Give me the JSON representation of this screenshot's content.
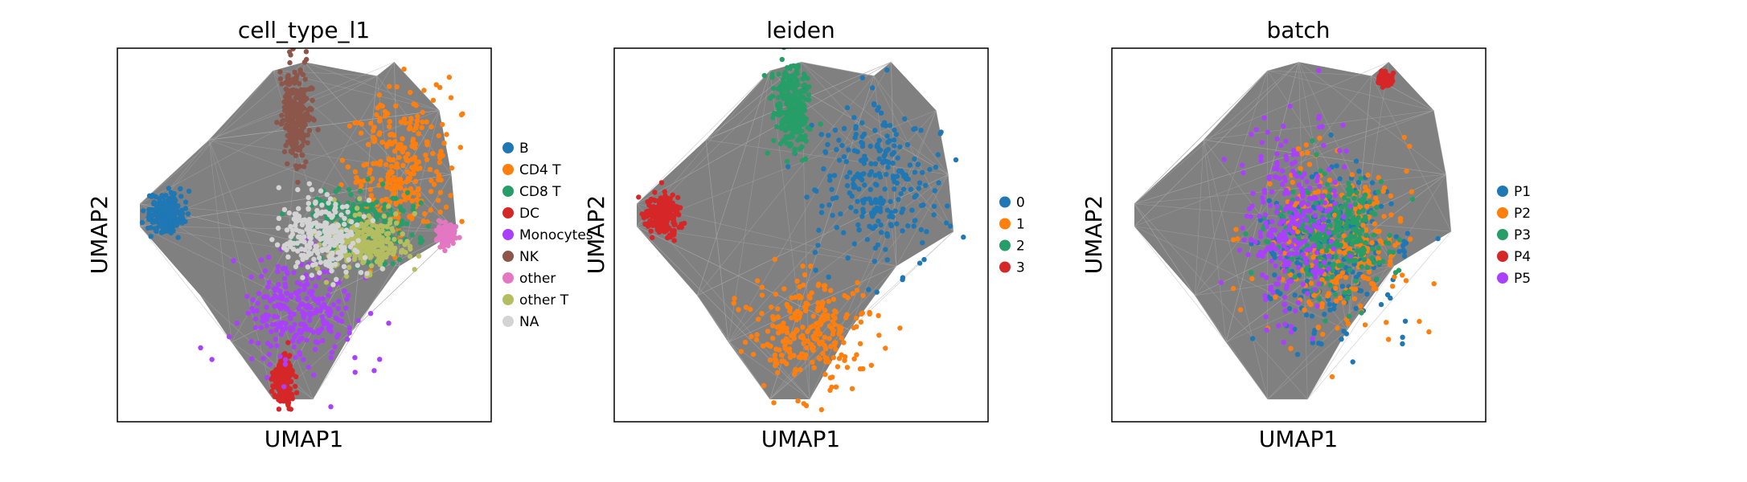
{
  "chart_data": [
    {
      "type": "scatter",
      "title": "cell_type_l1",
      "xlabel": "UMAP1",
      "ylabel": "UMAP2",
      "grid": false,
      "ticks": false,
      "legend_position": "right",
      "categories": [
        "B",
        "CD4 T",
        "CD8 T",
        "DC",
        "Monocytes",
        "NK",
        "other",
        "other T",
        "NA"
      ],
      "colors": [
        "#1f77b4",
        "#ff7f0e",
        "#279e68",
        "#d62728",
        "#aa40fc",
        "#8c564b",
        "#e377c2",
        "#b5bd61",
        "#d3d3d3"
      ],
      "clusters": [
        {
          "category": "B",
          "center": [
            -0.8,
            0.12
          ],
          "spread": [
            0.09,
            0.1
          ]
        },
        {
          "category": "CD4 T",
          "center": [
            0.55,
            0.42
          ],
          "spread": [
            0.26,
            0.38
          ]
        },
        {
          "category": "CD8 T",
          "center": [
            0.3,
            0.05
          ],
          "spread": [
            0.28,
            0.18
          ]
        },
        {
          "category": "DC",
          "center": [
            -0.12,
            -0.85
          ],
          "spread": [
            0.05,
            0.12
          ]
        },
        {
          "category": "Monocytes",
          "center": [
            -0.02,
            -0.45
          ],
          "spread": [
            0.28,
            0.3
          ]
        },
        {
          "category": "NK",
          "center": [
            -0.05,
            0.7
          ],
          "spread": [
            0.08,
            0.25
          ]
        },
        {
          "category": "other",
          "center": [
            0.82,
            0.0
          ],
          "spread": [
            0.04,
            0.05
          ]
        },
        {
          "category": "other T",
          "center": [
            0.35,
            -0.05
          ],
          "spread": [
            0.22,
            0.14
          ]
        },
        {
          "category": "NA",
          "center": [
            0.1,
            0.0
          ],
          "spread": [
            0.2,
            0.2
          ]
        }
      ]
    },
    {
      "type": "scatter",
      "title": "leiden",
      "xlabel": "UMAP1",
      "ylabel": "UMAP2",
      "grid": false,
      "ticks": false,
      "legend_position": "right",
      "categories": [
        "0",
        "1",
        "2",
        "3"
      ],
      "colors": [
        "#1f77b4",
        "#ff7f0e",
        "#279e68",
        "#d62728"
      ],
      "clusters": [
        {
          "category": "0",
          "center": [
            0.45,
            0.3
          ],
          "spread": [
            0.32,
            0.42
          ]
        },
        {
          "category": "1",
          "center": [
            0.05,
            -0.55
          ],
          "spread": [
            0.3,
            0.28
          ]
        },
        {
          "category": "2",
          "center": [
            -0.05,
            0.72
          ],
          "spread": [
            0.09,
            0.22
          ]
        },
        {
          "category": "3",
          "center": [
            -0.8,
            0.12
          ],
          "spread": [
            0.09,
            0.1
          ]
        }
      ]
    },
    {
      "type": "scatter",
      "title": "batch",
      "xlabel": "UMAP1",
      "ylabel": "UMAP2",
      "grid": false,
      "ticks": false,
      "legend_position": "right",
      "categories": [
        "P1",
        "P2",
        "P3",
        "P4",
        "P5"
      ],
      "colors": [
        "#1f77b4",
        "#ff7f0e",
        "#279e68",
        "#d62728",
        "#aa40fc"
      ],
      "clusters": [
        {
          "category": "P1",
          "center": [
            0.2,
            -0.1
          ],
          "spread": [
            0.4,
            0.45
          ]
        },
        {
          "category": "P2",
          "center": [
            0.25,
            -0.05
          ],
          "spread": [
            0.4,
            0.45
          ]
        },
        {
          "category": "P3",
          "center": [
            0.2,
            0.0
          ],
          "spread": [
            0.3,
            0.3
          ]
        },
        {
          "category": "P4",
          "center": [
            0.5,
            0.9
          ],
          "spread": [
            0.03,
            0.03
          ]
        },
        {
          "category": "P5",
          "center": [
            -0.05,
            0.05
          ],
          "spread": [
            0.25,
            0.55
          ]
        }
      ]
    }
  ]
}
